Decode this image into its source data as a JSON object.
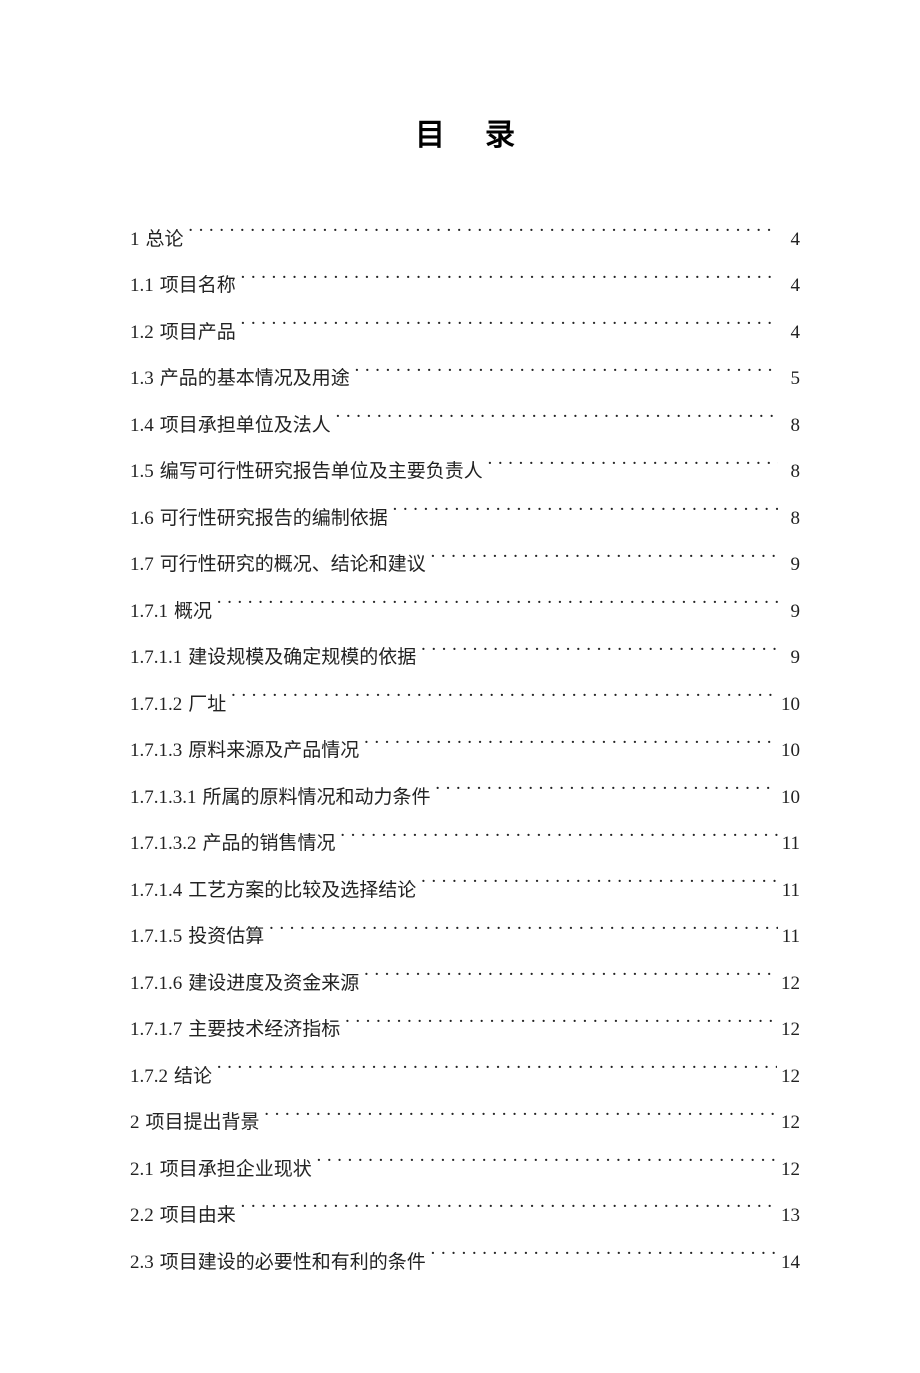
{
  "title": "目录",
  "text_color": "#222222",
  "background_color": "#ffffff",
  "font_family": "SimSun",
  "body_fontsize": 19,
  "title_fontsize": 30,
  "entries": [
    {
      "number": "1",
      "label": "总论",
      "page": "4"
    },
    {
      "number": "1.1",
      "label": "项目名称",
      "page": "4"
    },
    {
      "number": "1.2",
      "label": "项目产品",
      "page": "4"
    },
    {
      "number": "1.3",
      "label": "产品的基本情况及用途",
      "page": "5"
    },
    {
      "number": "1.4",
      "label": "项目承担单位及法人",
      "page": "8"
    },
    {
      "number": "1.5",
      "label": "编写可行性研究报告单位及主要负责人",
      "page": "8"
    },
    {
      "number": "1.6",
      "label": "可行性研究报告的编制依据",
      "page": "8"
    },
    {
      "number": "1.7",
      "label": "可行性研究的概况、结论和建议",
      "page": "9"
    },
    {
      "number": "1.7.1",
      "label": "概况",
      "page": "9"
    },
    {
      "number": "1.7.1.1",
      "label": "建设规模及确定规模的依据",
      "page": "9"
    },
    {
      "number": "1.7.1.2",
      "label": "厂址",
      "page": "10"
    },
    {
      "number": "1.7.1.3",
      "label": "原料来源及产品情况",
      "page": "10"
    },
    {
      "number": "1.7.1.3.1",
      "label": "所属的原料情况和动力条件",
      "page": "10"
    },
    {
      "number": "1.7.1.3.2",
      "label": "产品的销售情况",
      "page": "11"
    },
    {
      "number": "1.7.1.4",
      "label": "工艺方案的比较及选择结论",
      "page": "11"
    },
    {
      "number": "1.7.1.5",
      "label": "  投资估算",
      "page": "11"
    },
    {
      "number": "1.7.1.6",
      "label": "建设进度及资金来源",
      "page": "12"
    },
    {
      "number": "1.7.1.7",
      "label": "主要技术经济指标",
      "page": "12"
    },
    {
      "number": "1.7.2",
      "label": "结论",
      "page": "12"
    },
    {
      "number": "2",
      "label": "  项目提出背景",
      "page": "12"
    },
    {
      "number": "2.1",
      "label": " 项目承担企业现状",
      "page": "12"
    },
    {
      "number": "2.2",
      "label": "  项目由来",
      "page": "13"
    },
    {
      "number": "2.3",
      "label": "  项目建设的必要性和有利的条件",
      "page": "14"
    }
  ]
}
